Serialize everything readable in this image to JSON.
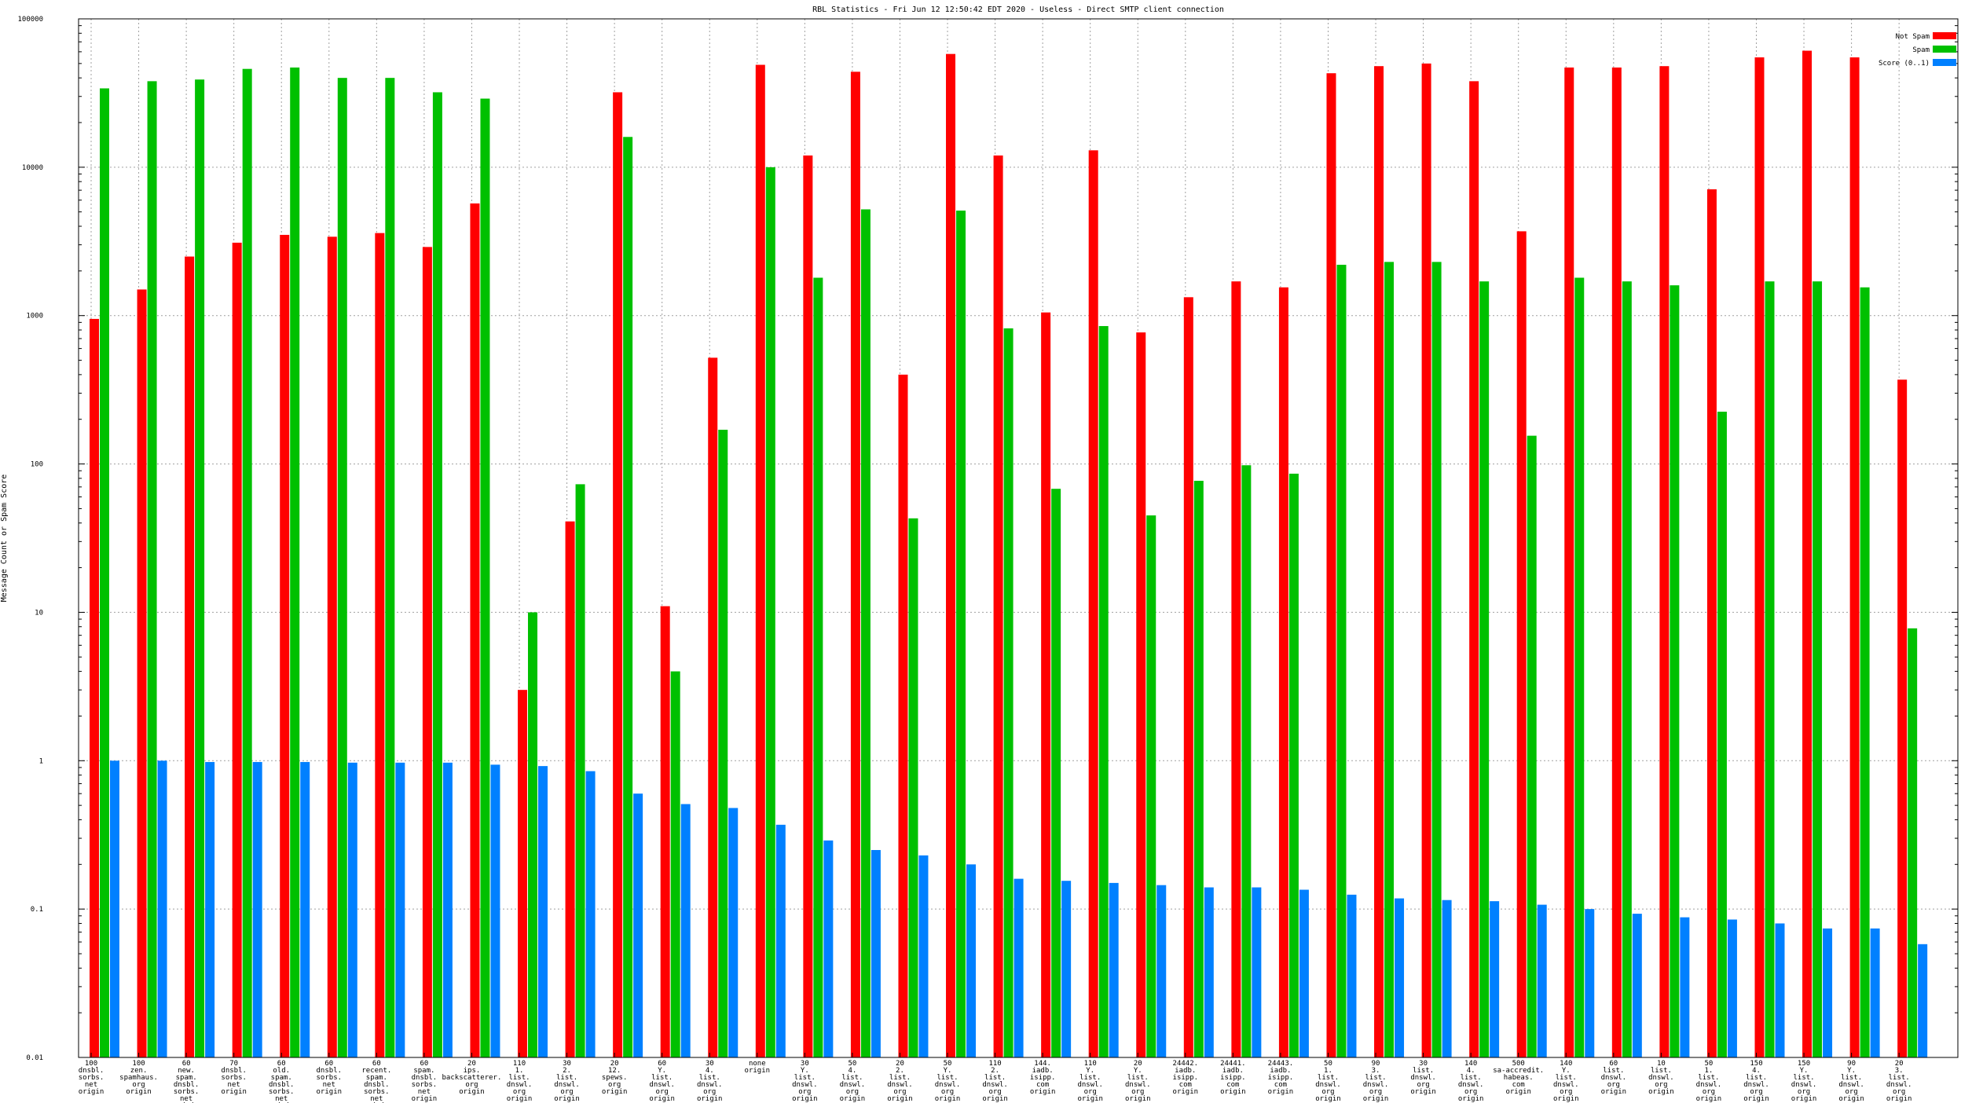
{
  "chart_data": {
    "type": "bar",
    "title": "RBL Statistics - Fri Jun 12 12:50:42 EDT 2020 - Useless - Direct SMTP client connection",
    "xlabel": "",
    "ylabel": "Message Count or Spam Score",
    "yscale": "log",
    "ylim": [
      0.01,
      100000
    ],
    "yticks": [
      "0.01",
      "0.1",
      "1",
      "10",
      "100",
      "1000",
      "10000",
      "100000"
    ],
    "grid": true,
    "legend_position": "top-right",
    "colors": {
      "not_spam": "#ff0000",
      "spam": "#00c000",
      "score": "#0080ff"
    },
    "categories": [
      "100 dnsbl. sorbs. net origin",
      "100 zen. spamhaus. org origin",
      "60 new. spam. dnsbl. sorbs. net origin",
      "70 dnsbl. sorbs. net origin",
      "60 old. spam. dnsbl. sorbs. net origin",
      "60 dnsbl. sorbs. net origin",
      "60 recent. spam. dnsbl. sorbs. net origin",
      "60 spam. dnsbl. sorbs. net origin",
      "20 ips. backscatterer. org origin",
      "110 1. list. dnswl. org origin",
      "30 2. list. dnswl. org origin",
      "20 12. spews. org origin",
      "60 Y. list. dnswl. org origin",
      "30 4. list. dnswl. org origin",
      "none origin",
      "30 Y. list. dnswl. org origin",
      "50 4. list. dnswl. org origin",
      "20 2. list. dnswl. org origin",
      "50 Y. list. dnswl. org origin",
      "110 2. list. dnswl. org origin",
      "144. iadb. isipp. com origin",
      "110 Y. list. dnswl. org origin",
      "20 Y. list. dnswl. org origin",
      "24442. iadb. isipp. com origin",
      "24441. iadb. isipp. com origin",
      "24443. iadb. isipp. com origin",
      "50 1. list. dnswl. org origin",
      "90 3. list. dnswl. org origin",
      "30 list. dnswl. org origin",
      "140 4. list. dnswl. org origin",
      "500 sa-accredit. habeas. com origin",
      "140 Y. list. dnswl. org origin",
      "60 list. dnswl. org origin",
      "10 list. dnswl. org origin",
      "50 1. list. dnswl. org origin",
      "150 4. list. dnswl. org origin",
      "150 Y. list. dnswl. org origin",
      "90 Y. list. dnswl. org origin",
      "20 3. list. dnswl. org origin"
    ],
    "series": [
      {
        "name": "Not Spam",
        "values": [
          950,
          1500,
          2500,
          3100,
          3500,
          3400,
          3600,
          2900,
          5700,
          3,
          41,
          32000,
          11,
          520,
          49000,
          12000,
          44000,
          400,
          58000,
          12000,
          1050,
          13000,
          770,
          1330,
          1700,
          1550,
          43000,
          48000,
          50000,
          38000,
          3700,
          47000,
          47000,
          48000,
          7100,
          55000,
          61000,
          55000,
          370
        ]
      },
      {
        "name": "Spam",
        "values": [
          34000,
          38000,
          39000,
          46000,
          47000,
          40000,
          40000,
          32000,
          29000,
          10,
          73,
          16000,
          4,
          170,
          10000,
          1800,
          5200,
          43,
          5100,
          820,
          68,
          850,
          45,
          77,
          98,
          86,
          2200,
          2300,
          2300,
          1700,
          155,
          1800,
          1700,
          1600,
          225,
          1700,
          1700,
          1550,
          7.8
        ]
      },
      {
        "name": "Score (0..1)",
        "values": [
          1,
          1,
          0.98,
          0.98,
          0.98,
          0.97,
          0.97,
          0.97,
          0.94,
          0.92,
          0.85,
          0.6,
          0.51,
          0.48,
          0.37,
          0.29,
          0.25,
          0.23,
          0.2,
          0.16,
          0.155,
          0.15,
          0.145,
          0.14,
          0.14,
          0.135,
          0.125,
          0.118,
          0.115,
          0.113,
          0.107,
          0.1,
          0.093,
          0.088,
          0.085,
          0.08,
          0.074,
          0.074,
          0.058
        ]
      }
    ]
  }
}
